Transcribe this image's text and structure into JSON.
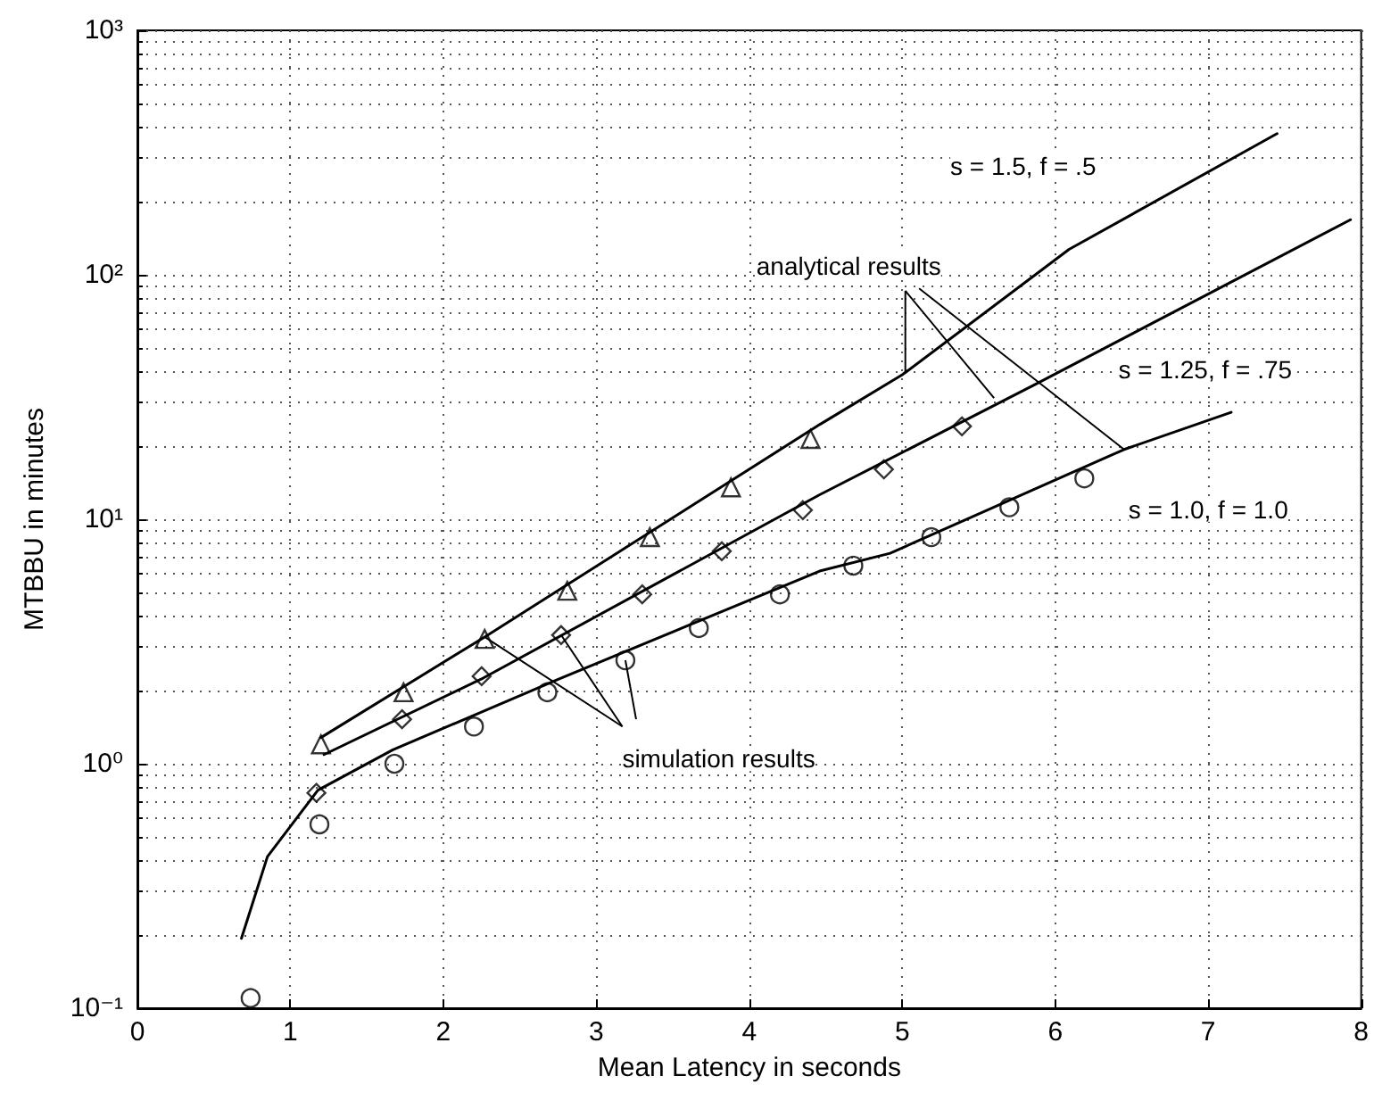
{
  "chart_data": {
    "type": "line",
    "xlabel": "Mean Latency in seconds",
    "ylabel": "MTBBU in minutes",
    "log": "y",
    "grid": true,
    "xlim": [
      0,
      8
    ],
    "xticks": [
      0,
      1,
      2,
      3,
      4,
      5,
      6,
      7,
      8
    ],
    "ylim": [
      0.1,
      1000
    ],
    "yticks": [
      {
        "value": 0.1,
        "label": "10⁻¹"
      },
      {
        "value": 1,
        "label": "10⁰"
      },
      {
        "value": 10,
        "label": "10¹"
      },
      {
        "value": 100,
        "label": "10²"
      },
      {
        "value": 1000,
        "label": "10³"
      }
    ],
    "series": [
      {
        "marker": "none",
        "line_style": "solid",
        "color": "#000000",
        "x": [
          1.2,
          2.27,
          4.46,
          5.0,
          6.09,
          7.45
        ],
        "values": [
          1.28,
          3.3,
          24.4,
          39,
          127,
          378
        ]
      },
      {
        "marker": "none",
        "line_style": "solid",
        "color": "#000000",
        "x": [
          1.22,
          2.26,
          4.46,
          5.88,
          7.93
        ],
        "values": [
          1.09,
          2.24,
          12.6,
          35.9,
          168
        ]
      },
      {
        "marker": "none",
        "line_style": "solid",
        "color": "#000000",
        "x": [
          0.68,
          0.85,
          1.18,
          1.67,
          2.74,
          4.46,
          4.92,
          6.45,
          7.15
        ],
        "values": [
          0.193,
          0.417,
          0.78,
          1.14,
          2.2,
          6.14,
          7.26,
          19.3,
          27.4
        ]
      },
      {
        "type": "scatter",
        "marker": "triangle",
        "color": "#000000",
        "x": [
          1.2,
          1.74,
          2.27,
          2.81,
          3.35,
          3.88,
          4.4
        ],
        "values": [
          1.2,
          1.96,
          3.24,
          5.1,
          8.45,
          13.5,
          21.3
        ]
      },
      {
        "type": "scatter",
        "marker": "diamond",
        "color": "#000000",
        "x": [
          1.17,
          1.73,
          2.25,
          2.77,
          3.3,
          3.82,
          4.35,
          4.88,
          5.39
        ],
        "values": [
          0.76,
          1.52,
          2.28,
          3.36,
          4.93,
          7.4,
          10.9,
          16.0,
          24.0
        ]
      },
      {
        "type": "scatter",
        "marker": "circle",
        "color": "#000000",
        "x": [
          0.74,
          1.19,
          1.68,
          2.2,
          2.68,
          3.19,
          3.67,
          4.2,
          4.68,
          5.19,
          5.7,
          6.19
        ],
        "values": [
          0.11,
          0.565,
          1.0,
          1.42,
          1.96,
          2.65,
          3.59,
          4.93,
          6.46,
          8.45,
          11.2,
          14.7
        ]
      }
    ],
    "annotations": [
      "s = 1.5, f = .5",
      {
        "text": "analytical results",
        "x": 5.02,
        "y": 40
      },
      "s = 1.25, f = .75",
      "s = 1.0, f = 1.0",
      {
        "text": "simulation results",
        "x": 2.77,
        "y": 3.36
      }
    ]
  }
}
